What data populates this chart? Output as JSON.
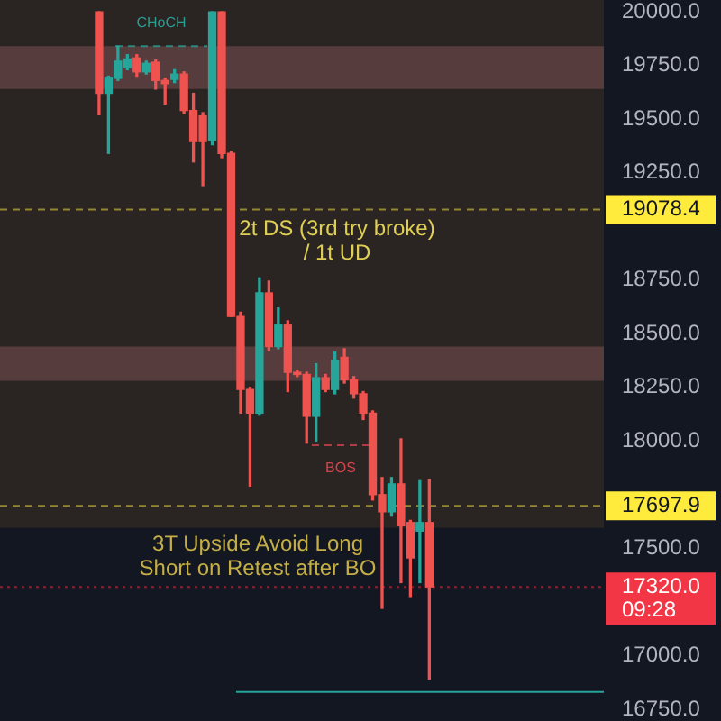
{
  "chart_data": {
    "type": "candlestick",
    "categories": [
      null,
      null,
      null,
      null,
      null,
      null,
      null,
      null,
      null,
      null,
      null,
      null,
      null,
      null,
      null,
      null,
      null,
      null,
      null,
      null,
      null,
      null,
      null,
      null,
      null,
      null,
      null,
      null,
      null,
      null,
      null,
      null,
      null,
      null,
      null,
      null,
      null,
      null,
      null,
      null,
      null,
      null,
      null,
      null,
      null,
      null,
      null,
      null,
      null,
      null,
      null,
      null,
      null,
      null,
      null,
      null,
      null,
      null,
      null,
      null,
      null,
      null,
      null,
      null
    ],
    "ohlc": [
      null,
      null,
      null,
      null,
      null,
      null,
      null,
      null,
      null,
      null,
      [
        20000,
        20000,
        19520,
        19620
      ],
      [
        19620,
        19700,
        19340,
        19695
      ],
      [
        19690,
        19840,
        19680,
        19770
      ],
      [
        19740,
        19800,
        19730,
        19780
      ],
      [
        19785,
        19800,
        19700,
        19720
      ],
      [
        19720,
        19770,
        19710,
        19760
      ],
      [
        19765,
        19775,
        19640,
        19680
      ],
      [
        19680,
        19690,
        19570,
        19665
      ],
      [
        19685,
        19730,
        19670,
        19710
      ],
      [
        19710,
        19720,
        19525,
        19540
      ],
      [
        19540,
        19620,
        19300,
        19395
      ],
      [
        19515,
        19530,
        19190,
        19395
      ],
      [
        19400,
        20000,
        19380,
        20000
      ],
      [
        20000,
        20000,
        19320,
        19340
      ],
      [
        19340,
        19350,
        18580,
        18580
      ],
      [
        18580,
        18600,
        18130,
        18240
      ],
      [
        18240,
        18250,
        17790,
        18130
      ],
      [
        18130,
        18760,
        18120,
        18690
      ],
      [
        18690,
        18745,
        18420,
        18440
      ],
      [
        18440,
        18620,
        18430,
        18540
      ],
      [
        18540,
        18560,
        18230,
        18320
      ],
      [
        18320,
        18330,
        18300,
        18310
      ],
      [
        18310,
        18320,
        17990,
        18115
      ],
      [
        18115,
        18360,
        18000,
        18295
      ],
      [
        18295,
        18310,
        18230,
        18240
      ],
      [
        18240,
        18415,
        18220,
        18375
      ],
      [
        18390,
        18430,
        18270,
        18285
      ],
      [
        18285,
        18300,
        18200,
        18220
      ],
      [
        18220,
        18230,
        18100,
        18130
      ],
      [
        18130,
        18140,
        17725,
        17750
      ],
      [
        17750,
        17830,
        17220,
        17670
      ],
      [
        17670,
        17830,
        17650,
        17800
      ],
      [
        17800,
        18010,
        17340,
        17605
      ],
      [
        17620,
        17630,
        17275,
        17455
      ],
      [
        17580,
        17815,
        17340,
        17620
      ],
      [
        17620,
        17820,
        16890,
        17320
      ],
      null,
      null,
      null,
      null,
      null,
      null,
      null,
      null,
      null,
      null,
      null,
      null,
      null,
      null,
      null,
      null,
      null,
      null
    ],
    "colors": [
      null,
      null,
      null,
      null,
      null,
      null,
      null,
      null,
      null,
      null,
      "#ef5350",
      "#26a69a",
      "#26a69a",
      "#26a69a",
      "#ef5350",
      "#26a69a",
      "#ef5350",
      "#ef5350",
      "#26a69a",
      "#ef5350",
      "#ef5350",
      "#ef5350",
      "#26a69a",
      "#ef5350",
      "#ef5350",
      "#ef5350",
      "#ef5350",
      "#26a69a",
      "#ef5350",
      "#26a69a",
      "#ef5350",
      "#ef5350",
      "#ef5350",
      "#26a69a",
      "#ef5350",
      "#26a69a",
      "#ef5350",
      "#ef5350",
      "#ef5350",
      "#ef5350",
      "#ef5350",
      "#26a69a",
      "#ef5350",
      "#ef5350",
      "#26a69a",
      "#ef5350",
      null,
      null,
      null,
      null,
      null,
      null,
      null,
      null,
      null,
      null,
      null,
      null,
      null,
      null,
      null,
      null,
      null,
      null
    ],
    "ylim": [
      16695,
      20055
    ],
    "yticks": [
      {
        "value": 16750,
        "label": "16750.0"
      },
      {
        "value": 17000,
        "label": "17000.0"
      },
      {
        "value": 17500,
        "label": "17500.0"
      },
      {
        "value": 18000,
        "label": "18000.0"
      },
      {
        "value": 18250,
        "label": "18250.0"
      },
      {
        "value": 18500,
        "label": "18500.0"
      },
      {
        "value": 18750,
        "label": "18750.0"
      },
      {
        "value": 19250,
        "label": "19250.0"
      },
      {
        "value": 19500,
        "label": "19500.0"
      },
      {
        "value": 19750,
        "label": "19750.0"
      },
      {
        "value": 20000,
        "label": "20000.0"
      }
    ],
    "tick_labels": "y",
    "bands": [
      {
        "axis": "y",
        "from": 17595,
        "to": 20055,
        "color": "#2a2522"
      },
      {
        "axis": "y",
        "from": 19640,
        "to": 19840,
        "color": "#573c3d"
      },
      {
        "axis": "y",
        "from": 18280,
        "to": 18440,
        "color": "#573c3d"
      }
    ],
    "ref_lines": [
      {
        "axis": "y",
        "value": 19078.4,
        "label": "19078.4",
        "color": "#ffeb3b",
        "line_style": "dashed"
      },
      {
        "axis": "y",
        "value": 17697.9,
        "label": "17697.9",
        "color": "#ffeb3b",
        "line_style": "dashed"
      },
      {
        "axis": "y",
        "value": 17320,
        "label": "17320.0\n09:28",
        "color": "#f23645",
        "line_style": "dotted"
      },
      {
        "axis": "y",
        "value": 16830,
        "color": "#26a69a",
        "line_style": "solid"
      },
      {
        "axis": "y",
        "value": 19840,
        "label": "CHoCH",
        "color": "#2a9d92",
        "line_style": "dashed"
      },
      {
        "axis": "y",
        "value": 17980,
        "label": "BOS",
        "color": "#d0454c",
        "line_style": "dashed"
      }
    ],
    "annotations": [
      "2t DS (3rd try broke)\n/ 1t UD",
      "3T Upside Avoid Long\nShort on Retest after BO"
    ]
  }
}
